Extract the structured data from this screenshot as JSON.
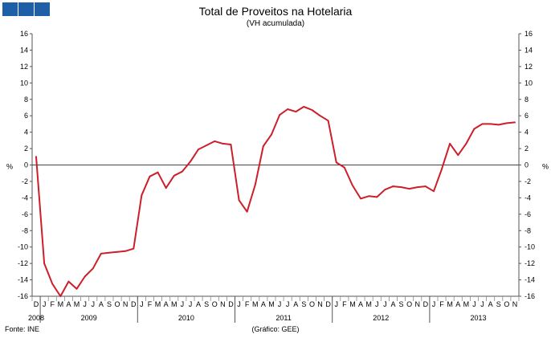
{
  "logo": {
    "blocks": 3,
    "color": "#1f5fa8"
  },
  "header": {
    "title": "Total de Proveitos na Hotelaria",
    "subtitle": "(VH acumulada)"
  },
  "footer": {
    "source": "Fonte: INE",
    "credit": "(Gráfico: GEE)"
  },
  "chart_data": {
    "type": "line",
    "title": "Total de Proveitos na Hotelaria",
    "subtitle": "(VH acumulada)",
    "ylabel": "%",
    "ylim": [
      -16,
      16
    ],
    "yticks": [
      16,
      14,
      12,
      10,
      8,
      6,
      4,
      2,
      0,
      -2,
      -4,
      -6,
      -8,
      -10,
      -12,
      -14,
      -16
    ],
    "grid": false,
    "line_color": "#cc1f2a",
    "month_labels": [
      "D",
      "J",
      "F",
      "M",
      "A",
      "M",
      "J",
      "J",
      "A",
      "S",
      "O",
      "N",
      "D",
      "J",
      "F",
      "M",
      "A",
      "M",
      "J",
      "J",
      "A",
      "S",
      "O",
      "N",
      "D",
      "J",
      "F",
      "M",
      "A",
      "M",
      "J",
      "J",
      "A",
      "S",
      "O",
      "N",
      "D",
      "J",
      "F",
      "M",
      "A",
      "M",
      "J",
      "J",
      "A",
      "S",
      "O",
      "N",
      "D",
      "J",
      "F",
      "M",
      "A",
      "M",
      "J",
      "J",
      "A",
      "S",
      "O",
      "N"
    ],
    "year_labels": [
      {
        "label": "2008",
        "month_index": 0
      },
      {
        "label": "2009",
        "month_index": 6.5
      },
      {
        "label": "2010",
        "month_index": 18.5
      },
      {
        "label": "2011",
        "month_index": 30.5
      },
      {
        "label": "2012",
        "month_index": 42.5
      },
      {
        "label": "2013",
        "month_index": 54.5
      }
    ],
    "year_separators": [
      0.5,
      12.5,
      24.5,
      36.5,
      48.5
    ],
    "series": [
      {
        "values": [
          1.0,
          -12.0,
          -14.5,
          -16.0,
          -14.2,
          -15.1,
          -13.6,
          -12.6,
          -10.8,
          -10.7,
          -10.6,
          -10.5,
          -10.2,
          -3.7,
          -1.4,
          -0.9,
          -2.8,
          -1.3,
          -0.8,
          0.4,
          1.9,
          2.4,
          2.9,
          2.6,
          2.5,
          -4.3,
          -5.7,
          -2.4,
          2.3,
          3.7,
          6.1,
          6.8,
          6.5,
          7.1,
          6.7,
          6.0,
          5.4,
          0.3,
          -0.3,
          -2.5,
          -4.1,
          -3.8,
          -3.9,
          -3.0,
          -2.6,
          -2.7,
          -2.9,
          -2.7,
          -2.6,
          -3.2,
          -0.5,
          2.6,
          1.2,
          2.6,
          4.4,
          5.0,
          5.0,
          4.9,
          5.1,
          5.2
        ]
      }
    ]
  }
}
